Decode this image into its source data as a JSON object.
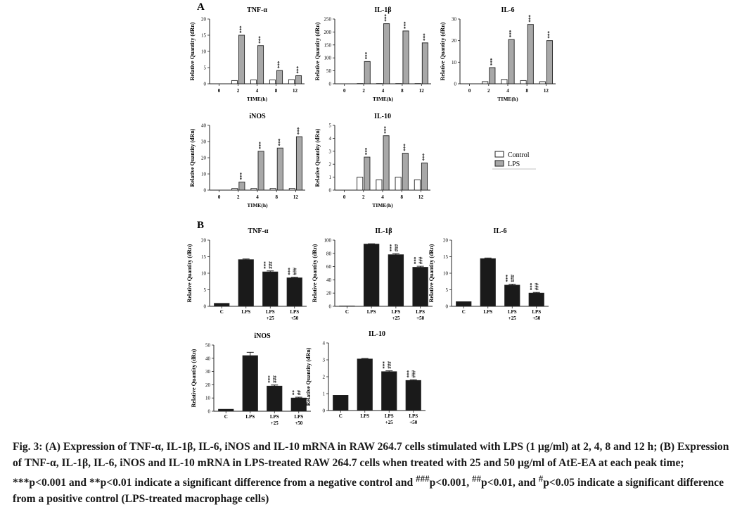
{
  "panel_labels": {
    "a": "A",
    "b": "B"
  },
  "legend": {
    "control": "Control",
    "lps": "LPS"
  },
  "colors": {
    "control_fill": "#ffffff",
    "lps_fill_a": "#a8a8a8",
    "bar_fill_b": "#1a1a1a",
    "stroke": "#222222"
  },
  "chart_data": [
    {
      "panel": "A",
      "type": "bar",
      "title": "TNF-α",
      "ylabel": "Relative Quantity (dRn)",
      "xlabel": "TIME(h)",
      "categories": [
        "0",
        "2",
        "4",
        "8",
        "12"
      ],
      "ylim": [
        0,
        20
      ],
      "yticks": [
        0,
        5,
        10,
        15,
        20
      ],
      "series": [
        {
          "name": "Control",
          "values": [
            0,
            1.0,
            1.2,
            1.2,
            1.3
          ]
        },
        {
          "name": "LPS",
          "values": [
            0,
            15,
            11.8,
            4.1,
            2.5
          ]
        }
      ],
      "annotations": [
        "",
        "***",
        "***",
        "***",
        "***"
      ]
    },
    {
      "panel": "A",
      "type": "bar",
      "title": "IL-1β",
      "ylabel": "Relative Quantity (dRn)",
      "xlabel": "TIME(h)",
      "categories": [
        "0",
        "2",
        "4",
        "8",
        "12"
      ],
      "ylim": [
        0,
        250
      ],
      "yticks": [
        0,
        50,
        100,
        150,
        200,
        250
      ],
      "series": [
        {
          "name": "Control",
          "values": [
            0,
            1,
            1,
            1,
            1
          ]
        },
        {
          "name": "LPS",
          "values": [
            0,
            86,
            232,
            204,
            158
          ]
        }
      ],
      "annotations": [
        "",
        "***",
        "***",
        "***",
        "***"
      ]
    },
    {
      "panel": "A",
      "type": "bar",
      "title": "IL-6",
      "ylabel": "Relative Quantity (dRn)",
      "xlabel": "TIME(h)",
      "categories": [
        "0",
        "2",
        "4",
        "8",
        "12"
      ],
      "ylim": [
        0,
        30
      ],
      "yticks": [
        0,
        10,
        20,
        30
      ],
      "series": [
        {
          "name": "Control",
          "values": [
            0,
            1,
            2,
            1.5,
            1
          ]
        },
        {
          "name": "LPS",
          "values": [
            0,
            7.5,
            20.5,
            27.5,
            20
          ]
        }
      ],
      "annotations": [
        "",
        "***",
        "***",
        "***",
        "***"
      ]
    },
    {
      "panel": "A",
      "type": "bar",
      "title": "iNOS",
      "ylabel": "Relative Quantity (dRn)",
      "xlabel": "TIME(h)",
      "categories": [
        "0",
        "2",
        "4",
        "8",
        "12"
      ],
      "ylim": [
        0,
        40
      ],
      "yticks": [
        0,
        10,
        20,
        30,
        40
      ],
      "series": [
        {
          "name": "Control",
          "values": [
            0,
            1,
            1,
            1,
            1
          ]
        },
        {
          "name": "LPS",
          "values": [
            0,
            5,
            24,
            26,
            33
          ]
        }
      ],
      "annotations": [
        "",
        "***",
        "***",
        "***",
        "***"
      ]
    },
    {
      "panel": "A",
      "type": "bar",
      "title": "IL-10",
      "ylabel": "Relative Quantity (dRn)",
      "xlabel": "TIME(h)",
      "categories": [
        "0",
        "2",
        "4",
        "8",
        "12"
      ],
      "ylim": [
        0,
        5
      ],
      "yticks": [
        0,
        1,
        2,
        3,
        4,
        5
      ],
      "series": [
        {
          "name": "Control",
          "values": [
            0,
            1,
            0.8,
            1,
            0.8
          ]
        },
        {
          "name": "LPS",
          "values": [
            0,
            2.55,
            4.2,
            2.85,
            2.1
          ]
        }
      ],
      "annotations": [
        "",
        "***",
        "***",
        "***",
        "***"
      ]
    },
    {
      "panel": "B",
      "type": "bar",
      "title": "TNF-α",
      "ylabel": "Relative Quantity (dRn)",
      "categories": [
        "C",
        "LPS",
        "LPS\n+25",
        "LPS\n+50"
      ],
      "ylim": [
        0,
        20
      ],
      "yticks": [
        0,
        5,
        10,
        15,
        20
      ],
      "values": [
        0.9,
        14.1,
        10.4,
        8.6
      ],
      "errors": [
        0,
        0.2,
        0.3,
        0.2
      ],
      "annotations": [
        "",
        "",
        "***\n###",
        "***\n###"
      ]
    },
    {
      "panel": "B",
      "type": "bar",
      "title": "IL-1β",
      "ylabel": "Relative Quantity (dRn)",
      "categories": [
        "C",
        "LPS",
        "LPS\n+25",
        "LPS\n+50"
      ],
      "ylim": [
        0,
        100
      ],
      "yticks": [
        0,
        20,
        40,
        60,
        80,
        100
      ],
      "values": [
        0.5,
        94,
        78,
        59
      ],
      "errors": [
        0,
        0.5,
        1.5,
        1.5
      ],
      "annotations": [
        "",
        "",
        "***\n###",
        "***\n###"
      ]
    },
    {
      "panel": "B",
      "type": "bar",
      "title": "IL-6",
      "ylabel": "Relative Quantity (dRn)",
      "categories": [
        "C",
        "LPS",
        "LPS\n+25",
        "LPS\n+50"
      ],
      "ylim": [
        0,
        20
      ],
      "yticks": [
        0,
        5,
        10,
        15,
        20
      ],
      "values": [
        1.4,
        14.4,
        6.4,
        4.0
      ],
      "errors": [
        0,
        0.2,
        0.3,
        0.2
      ],
      "annotations": [
        "",
        "",
        "***\n###",
        "***\n###"
      ]
    },
    {
      "panel": "B",
      "type": "bar",
      "title": "iNOS",
      "ylabel": "Relative Quantity (dRn)",
      "categories": [
        "C",
        "LPS",
        "LPS\n+25",
        "LPS\n+50"
      ],
      "ylim": [
        0,
        50
      ],
      "yticks": [
        0,
        10,
        20,
        30,
        40,
        50
      ],
      "values": [
        1.5,
        42,
        19,
        10
      ],
      "errors": [
        0,
        2.5,
        0.8,
        0.6
      ],
      "annotations": [
        "",
        "",
        "***\n###",
        "**\n##"
      ]
    },
    {
      "panel": "B",
      "type": "bar",
      "title": "IL-10",
      "ylabel": "Relative Quantity (dRn)",
      "categories": [
        "C",
        "LPS",
        "LPS\n+25",
        "LPS\n+50"
      ],
      "ylim": [
        0,
        4
      ],
      "yticks": [
        0,
        1,
        2,
        3,
        4
      ],
      "values": [
        0.9,
        3.05,
        2.3,
        1.78
      ],
      "errors": [
        0,
        0.03,
        0.05,
        0.04
      ],
      "annotations": [
        "",
        "",
        "***\n###",
        "***\n###"
      ]
    }
  ],
  "caption": {
    "fig_label": "Fig. 3:",
    "part_a": " (A) Expression of TNF-α, IL-1β, IL-6, iNOS and IL-10 mRNA in RAW 264.7 cells stimulated with LPS (1 μg/ml) at 2, 4, 8 and 12 h; (B) Expression of TNF-α, IL-1β, IL-6, iNOS and IL-10 mRNA in LPS-treated RAW 264.7 cells when treated with 25 and 50 μg/ml of AtE-EA at each peak time; ***p<0.001 and **p<0.01 indicate a significant difference from a negative control and ",
    "sup1": "###",
    "part_b": "p<0.001, ",
    "sup2": "##",
    "part_c": "p<0.01, and ",
    "sup3": "#",
    "part_d": "p<0.05 indicate a significant difference from a positive control (LPS-treated macrophage cells)"
  }
}
